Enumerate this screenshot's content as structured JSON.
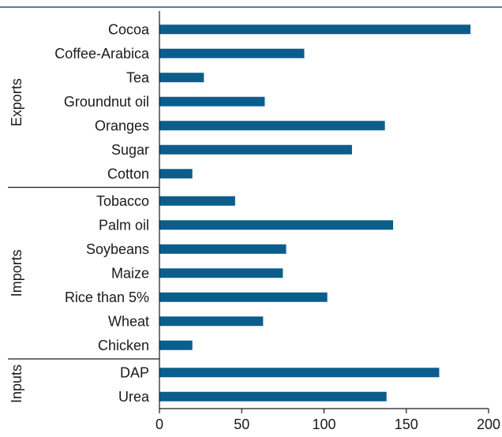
{
  "chart_data": {
    "type": "bar",
    "orientation": "horizontal",
    "title": "",
    "xlabel": "",
    "ylabel": "",
    "xlim": [
      0,
      200
    ],
    "xticks": [
      0,
      50,
      100,
      150,
      200
    ],
    "grid": false,
    "legend": "none",
    "bar_color": "#0b5e8c",
    "groups": [
      {
        "name": "Exports",
        "categories": [
          "Cocoa",
          "Coffee-Arabica",
          "Tea",
          "Groundnut oil",
          "Oranges",
          "Sugar",
          "Cotton"
        ],
        "values": [
          189,
          88,
          27,
          64,
          137,
          117,
          20
        ]
      },
      {
        "name": "Imports",
        "categories": [
          "Tobacco",
          "Palm oil",
          "Soybeans",
          "Maize",
          "Rice than 5%",
          "Wheat",
          "Chicken"
        ],
        "values": [
          46,
          142,
          77,
          75,
          102,
          63,
          20
        ]
      },
      {
        "name": "Inputs",
        "categories": [
          "DAP",
          "Urea"
        ],
        "values": [
          170,
          138
        ]
      }
    ]
  }
}
